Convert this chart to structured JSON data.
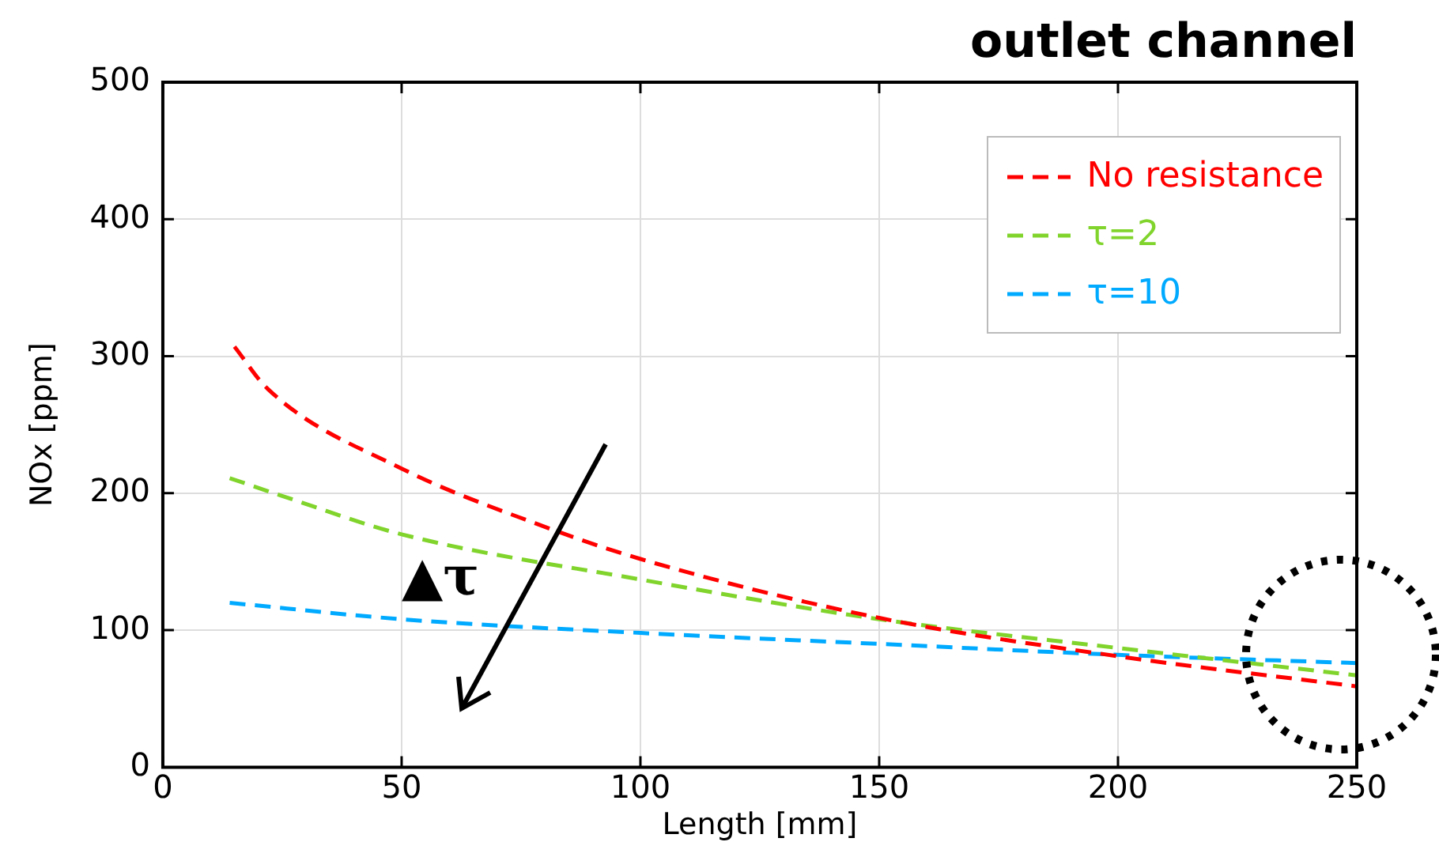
{
  "chart_data": {
    "type": "line",
    "title": "outlet channel",
    "xlabel": "Length [mm]",
    "ylabel": "NOx [ppm]",
    "xlim": [
      0,
      250
    ],
    "xticks": [
      0,
      50,
      100,
      150,
      200,
      250
    ],
    "ylim": [
      0,
      500
    ],
    "yticks": [
      0,
      100,
      200,
      300,
      400,
      500
    ],
    "grid": true,
    "legend": "top right",
    "line_style": "dashed",
    "marker": "none",
    "annotations": [
      "▲τ"
    ],
    "series": [
      {
        "name": "No resistance",
        "color": "#ff0000",
        "x": [
          15,
          22,
          50,
          78,
          100,
          150,
          200,
          250
        ],
        "values": [
          307,
          276,
          218,
          178,
          152,
          109,
          81,
          59
        ]
      },
      {
        "name": "τ=2",
        "color": "#80d42c",
        "x": [
          14,
          25,
          50,
          100,
          150,
          200,
          250
        ],
        "values": [
          211,
          198,
          170,
          137,
          108,
          87,
          67
        ]
      },
      {
        "name": "τ=10",
        "color": "#00aaff",
        "x": [
          14,
          50,
          100,
          150,
          200,
          250
        ],
        "values": [
          120,
          108,
          98,
          90,
          82,
          76
        ]
      }
    ]
  }
}
